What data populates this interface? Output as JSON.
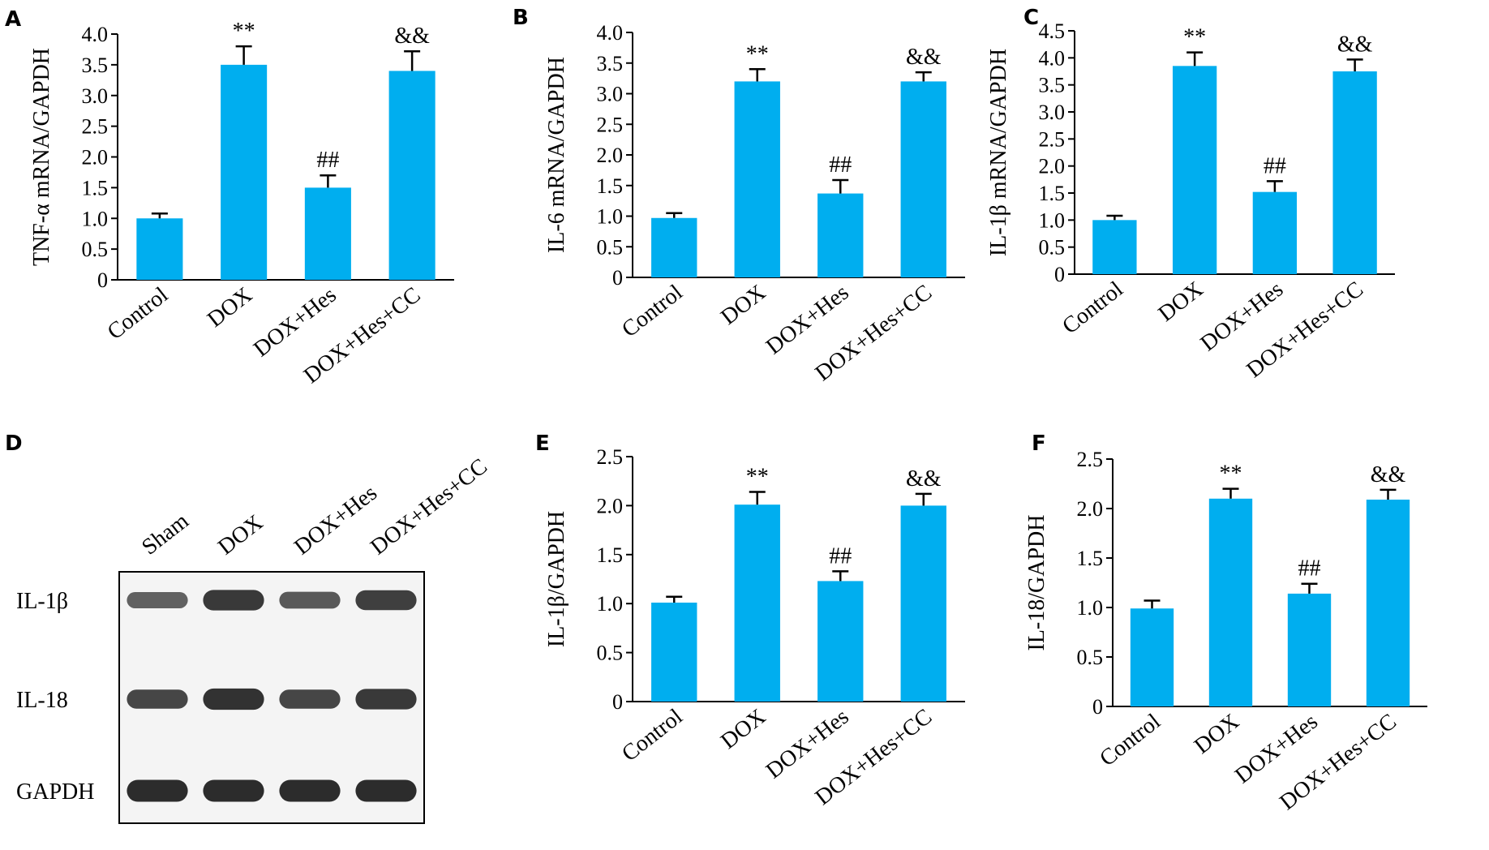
{
  "colors": {
    "bar": "#00AEEF",
    "axis": "#000000",
    "band": "#1a1a1a"
  },
  "chart_data": [
    {
      "panel": "A",
      "type": "bar",
      "categories": [
        "Control",
        "DOX",
        "DOX+Hes",
        "DOX+Hes+CC"
      ],
      "values": [
        1.0,
        3.5,
        1.5,
        3.4
      ],
      "errors": [
        0.08,
        0.3,
        0.2,
        0.32
      ],
      "annotations": [
        "",
        "**",
        "##",
        "&&"
      ],
      "ylabel": "TNF-α mRNA/GAPDH",
      "ylim": [
        0,
        4.0
      ],
      "yticks": [
        "0",
        "0.5",
        "1.0",
        "1.5",
        "2.0",
        "2.5",
        "3.0",
        "3.5",
        "4.0"
      ]
    },
    {
      "panel": "B",
      "type": "bar",
      "categories": [
        "Control",
        "DOX",
        "DOX+Hes",
        "DOX+Hes+CC"
      ],
      "values": [
        0.97,
        3.2,
        1.37,
        3.2
      ],
      "errors": [
        0.08,
        0.2,
        0.22,
        0.15
      ],
      "annotations": [
        "",
        "**",
        "##",
        "&&"
      ],
      "ylabel": "IL-6 mRNA/GAPDH",
      "ylim": [
        0,
        4.0
      ],
      "yticks": [
        "0",
        "0.5",
        "1.0",
        "1.5",
        "2.0",
        "2.5",
        "3.0",
        "3.5",
        "4.0"
      ]
    },
    {
      "panel": "C",
      "type": "bar",
      "categories": [
        "Control",
        "DOX",
        "DOX+Hes",
        "DOX+Hes+CC"
      ],
      "values": [
        1.0,
        3.85,
        1.52,
        3.75
      ],
      "errors": [
        0.08,
        0.25,
        0.2,
        0.22
      ],
      "annotations": [
        "",
        "**",
        "##",
        "&&"
      ],
      "ylabel": "IL-1β mRNA/GAPDH",
      "ylim": [
        0,
        4.5
      ],
      "yticks": [
        "0",
        "0.5",
        "1.0",
        "1.5",
        "2.0",
        "2.5",
        "3.0",
        "3.5",
        "4.0",
        "4.5"
      ]
    },
    {
      "panel": "E",
      "type": "bar",
      "categories": [
        "Control",
        "DOX",
        "DOX+Hes",
        "DOX+Hes+CC"
      ],
      "values": [
        1.01,
        2.01,
        1.23,
        2.0
      ],
      "errors": [
        0.06,
        0.13,
        0.1,
        0.12
      ],
      "annotations": [
        "",
        "**",
        "##",
        "&&"
      ],
      "ylabel": "IL-1β/GAPDH",
      "ylim": [
        0,
        2.5
      ],
      "yticks": [
        "0",
        "0.5",
        "1.0",
        "1.5",
        "2.0",
        "2.5"
      ]
    },
    {
      "panel": "F",
      "type": "bar",
      "categories": [
        "Control",
        "DOX",
        "DOX+Hes",
        "DOX+Hes+CC"
      ],
      "values": [
        0.99,
        2.1,
        1.14,
        2.09
      ],
      "errors": [
        0.08,
        0.1,
        0.1,
        0.1
      ],
      "annotations": [
        "",
        "**",
        "##",
        "&&"
      ],
      "ylabel": "IL-18/GAPDH",
      "ylim": [
        0,
        2.5
      ],
      "yticks": [
        "0",
        "0.5",
        "1.0",
        "1.5",
        "2.0",
        "2.5"
      ]
    }
  ],
  "western_blot": {
    "panel": "D",
    "lanes": [
      "Sham",
      "DOX",
      "DOX+Hes",
      "DOX+Hes+CC"
    ],
    "rows": [
      {
        "label": "IL-1β",
        "intensities": [
          0.55,
          0.85,
          0.6,
          0.8
        ]
      },
      {
        "label": "IL-18",
        "intensities": [
          0.75,
          0.9,
          0.75,
          0.85
        ]
      },
      {
        "label": "GAPDH",
        "intensities": [
          0.95,
          0.95,
          0.95,
          0.95
        ]
      }
    ]
  }
}
